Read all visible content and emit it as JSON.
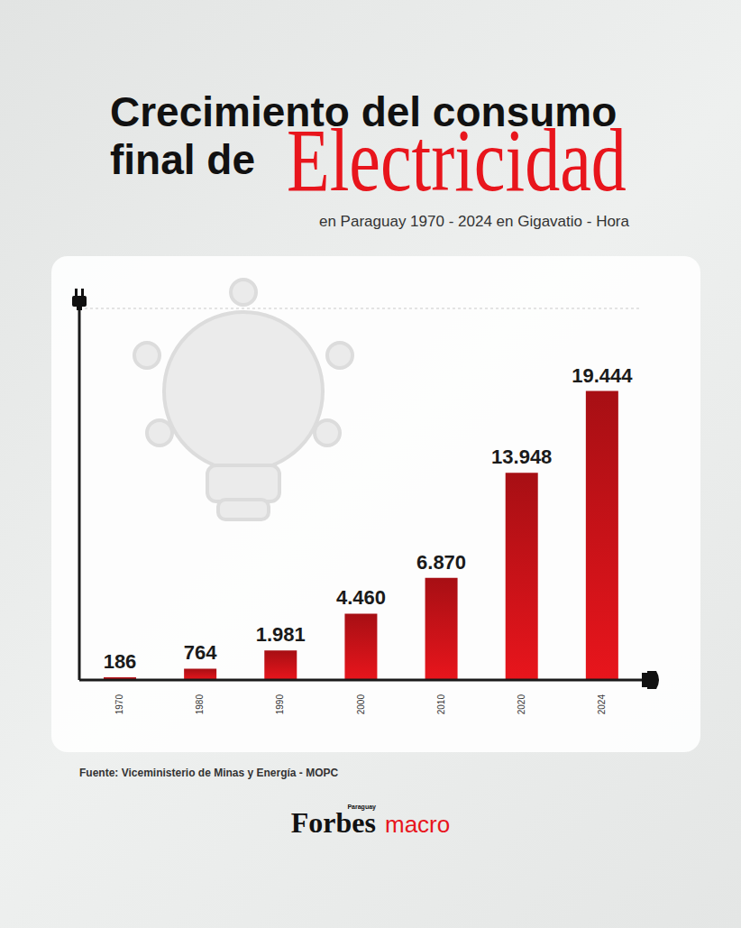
{
  "chart_data": {
    "type": "bar",
    "title": "Crecimiento del consumo final de",
    "title_emphasis": "Electricidad",
    "subtitle": "en Paraguay 1970 - 2024 en Gigavatio - Hora",
    "categories": [
      "1970",
      "1980",
      "1990",
      "2000",
      "2010",
      "2020",
      "2024"
    ],
    "values": [
      186,
      764,
      1981,
      4460,
      6870,
      13948,
      19444
    ],
    "value_labels": [
      "186",
      "764",
      "1.981",
      "4.460",
      "6.870",
      "13.948",
      "19.444"
    ],
    "color": "#e8151c",
    "ylim": [
      0,
      25000
    ],
    "yticks": [
      0,
      5000,
      10000,
      15000,
      20000,
      25000
    ],
    "grid": true,
    "tick_labels": "x",
    "data_labels": true,
    "source": "Fuente: Viceministerio de Minas y Energía - MOPC",
    "brand": "Forbes",
    "brand_edition": "Paraguay",
    "brand_section": "macro"
  }
}
